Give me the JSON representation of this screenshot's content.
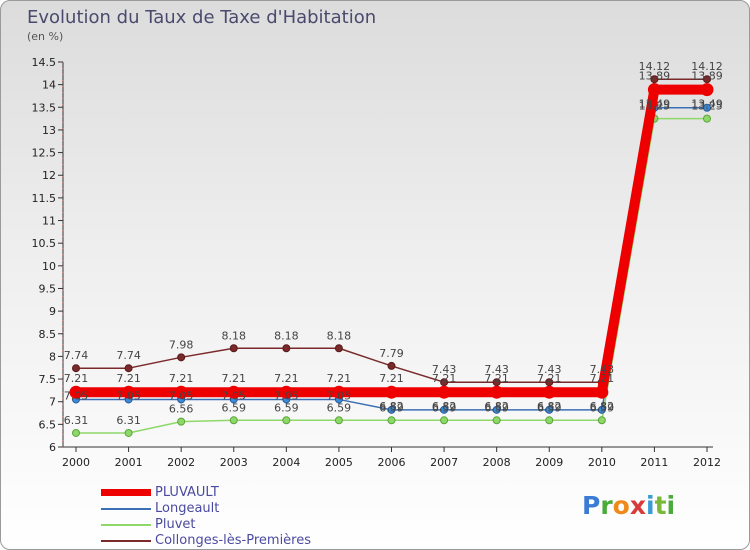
{
  "chart_data": {
    "type": "line",
    "title": "Evolution du Taux de Taxe d'Habitation",
    "subtitle": "(en %)",
    "x": [
      "2000",
      "2001",
      "2002",
      "2003",
      "2004",
      "2005",
      "2006",
      "2007",
      "2008",
      "2009",
      "2010",
      "2011",
      "2012"
    ],
    "ylim": [
      6,
      14.5
    ],
    "yticks": [
      "6",
      "6.5",
      "7",
      "7.5",
      "8",
      "8.5",
      "9",
      "9.5",
      "10",
      "10.5",
      "11",
      "11.5",
      "12",
      "12.5",
      "13",
      "13.5",
      "14",
      "14.5"
    ],
    "grid": false,
    "legend_position": "bottom-left",
    "series": [
      {
        "name": "PLUVAULT",
        "color": "#ee0000",
        "values": [
          7.21,
          7.21,
          7.21,
          7.21,
          7.21,
          7.21,
          7.21,
          7.21,
          7.21,
          7.21,
          7.21,
          13.89,
          13.89
        ],
        "labels": [
          "7.21",
          "7.21",
          "7.21",
          "7.21",
          "7.21",
          "7.21",
          "7.21",
          "7.21",
          "7.21",
          "7.21",
          "7.21",
          "13.89",
          "13.89"
        ]
      },
      {
        "name": "Longeault",
        "color": "#3a6fb5",
        "values": [
          7.05,
          7.05,
          7.05,
          7.05,
          7.05,
          7.05,
          6.82,
          6.82,
          6.82,
          6.82,
          6.82,
          13.49,
          13.49
        ],
        "labels": [
          "7.05",
          "7.05",
          "7.05",
          "7.05",
          "7.05",
          "7.05",
          "6.82",
          "6.82",
          "6.82",
          "6.82",
          "6.82",
          "13.49",
          "13.49"
        ]
      },
      {
        "name": "Pluvet",
        "color": "#8ed86a",
        "values": [
          6.31,
          6.31,
          6.56,
          6.59,
          6.59,
          6.59,
          6.59,
          6.59,
          6.59,
          6.59,
          6.59,
          13.25,
          13.25
        ],
        "labels": [
          "6.31",
          "6.31",
          "6.56",
          "6.59",
          "6.59",
          "6.59",
          "6.59",
          "6.59",
          "6.59",
          "6.59",
          "6.59",
          "13.25",
          "13.25"
        ]
      },
      {
        "name": "Collonges-lès-Premières",
        "color": "#7a2a2a",
        "values": [
          7.74,
          7.74,
          7.98,
          8.18,
          8.18,
          8.18,
          7.79,
          7.43,
          7.43,
          7.43,
          7.43,
          14.12,
          14.12
        ],
        "labels": [
          "7.74",
          "7.74",
          "7.98",
          "8.18",
          "8.18",
          "8.18",
          "7.79",
          "7.43",
          "7.43",
          "7.43",
          "7.43",
          "14.12",
          "14.12"
        ]
      }
    ]
  },
  "logo": {
    "text": "Proxiti"
  }
}
